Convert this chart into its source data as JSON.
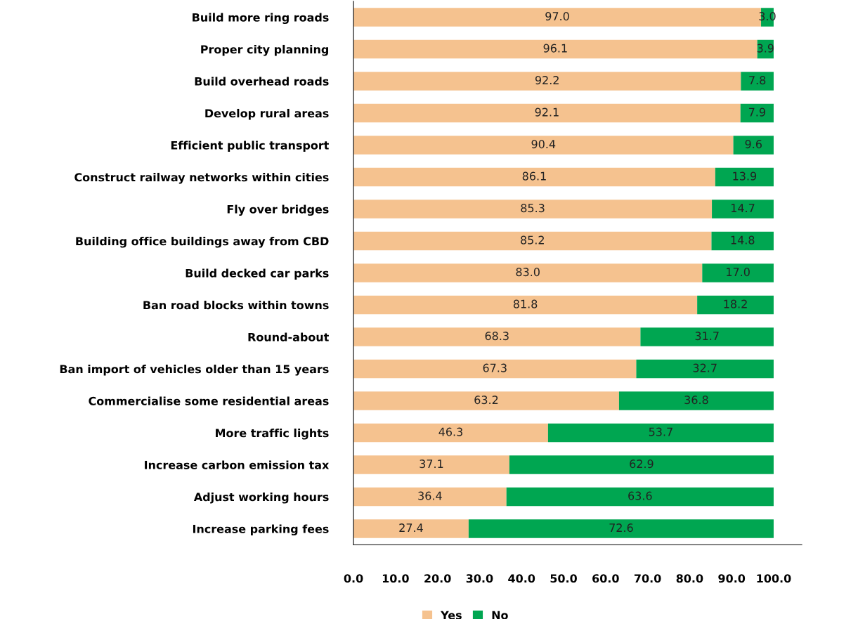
{
  "chart_data": {
    "type": "bar",
    "orientation": "horizontal",
    "stacked": true,
    "legend": "bottom",
    "grid": false,
    "categories": [
      "Build more ring roads",
      "Proper city planning",
      "Build overhead roads",
      "Develop rural areas",
      "Efficient public transport",
      "Construct railway networks within cities",
      "Fly over bridges",
      "Building office buildings away from CBD",
      "Build decked car parks",
      "Ban road blocks within towns",
      "Round-about",
      "Ban import of vehicles older than 15 years",
      "Commercialise some residential areas",
      "More traffic lights",
      "Increase carbon emission tax",
      "Adjust working hours",
      "Increase parking fees"
    ],
    "series": [
      {
        "name": "Yes",
        "color": "#f5c28f",
        "values": [
          97.0,
          96.1,
          92.2,
          92.1,
          90.4,
          86.1,
          85.3,
          85.2,
          83.0,
          81.8,
          68.3,
          67.3,
          63.2,
          46.3,
          37.1,
          36.4,
          27.4
        ],
        "value_labels": [
          "97.0",
          "96.1",
          "92.2",
          "92.1",
          "90.4",
          "86.1",
          "85.3",
          "85.2",
          "83.0",
          "81.8",
          "68.3",
          "67.3",
          "63.2",
          "46.3",
          "37.1",
          "36.4",
          "27.4"
        ]
      },
      {
        "name": "No",
        "color": "#00a651",
        "values": [
          3.0,
          3.9,
          7.8,
          7.9,
          9.6,
          13.9,
          14.7,
          14.8,
          17.0,
          18.2,
          31.7,
          32.7,
          36.8,
          53.7,
          62.9,
          63.6,
          72.6
        ],
        "value_labels": [
          "3.0",
          "3.9",
          "7.8",
          "7.9",
          "9.6",
          "13.9",
          "14.7",
          "14.8",
          "17.0",
          "18.2",
          "31.7",
          "32.7",
          "36.8",
          "53.7",
          "62.9",
          "63.6",
          "72.6"
        ]
      }
    ],
    "xlim": [
      0,
      106.7
    ],
    "xticks": [
      {
        "value": 0,
        "label": "0.0"
      },
      {
        "value": 10,
        "label": "10.0"
      },
      {
        "value": 20,
        "label": "20.0"
      },
      {
        "value": 30,
        "label": "30.0"
      },
      {
        "value": 40,
        "label": "40.0"
      },
      {
        "value": 50,
        "label": "50.0"
      },
      {
        "value": 60,
        "label": "60.0"
      },
      {
        "value": 70,
        "label": "70.0"
      },
      {
        "value": 80,
        "label": "80.0"
      },
      {
        "value": 90,
        "label": "90.0"
      },
      {
        "value": 100,
        "label": "100.0"
      }
    ]
  }
}
